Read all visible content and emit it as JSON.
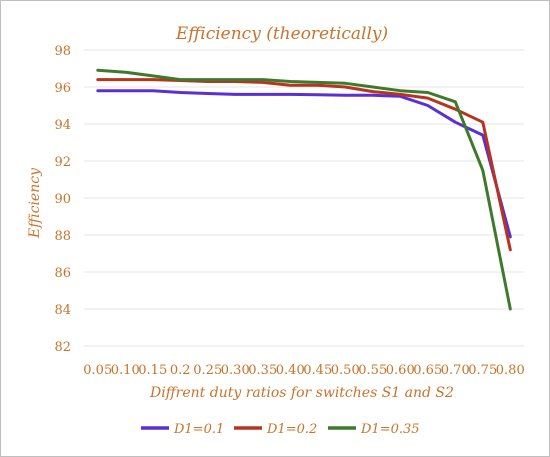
{
  "chart_data": {
    "type": "line",
    "title": "Efficiency (theoretically)",
    "xlabel": "Diffrent duty ratios for switches S1 and S2",
    "ylabel": "Efficiency",
    "categories": [
      "0.05",
      "0.10",
      "0.15",
      "0.2",
      "0.25",
      "0.30",
      "0.35",
      "0.40",
      "0.45",
      "0.50",
      "0.55",
      "0.60",
      "0.65",
      "0.70",
      "0.75",
      "0.80"
    ],
    "ylim": [
      82,
      98
    ],
    "yticks": [
      "82",
      "84",
      "86",
      "88",
      "90",
      "92",
      "94",
      "96",
      "98"
    ],
    "grid": true,
    "legend_position": "bottom",
    "series": [
      {
        "name": "D1=0.1",
        "color": "#5b2fd6",
        "values": [
          95.8,
          95.8,
          95.8,
          95.7,
          95.65,
          95.6,
          95.6,
          95.6,
          95.58,
          95.55,
          95.55,
          95.5,
          95.0,
          94.1,
          93.4,
          87.9
        ]
      },
      {
        "name": "D1=0.2",
        "color": "#b5351f",
        "values": [
          96.4,
          96.4,
          96.4,
          96.35,
          96.3,
          96.3,
          96.25,
          96.1,
          96.1,
          96.0,
          95.75,
          95.6,
          95.4,
          94.8,
          94.1,
          87.2
        ]
      },
      {
        "name": "D1=0.35",
        "color": "#3f7a2c",
        "values": [
          96.9,
          96.8,
          96.6,
          96.4,
          96.4,
          96.4,
          96.4,
          96.3,
          96.25,
          96.2,
          96.0,
          95.8,
          95.7,
          95.2,
          91.5,
          84.0
        ]
      }
    ]
  }
}
